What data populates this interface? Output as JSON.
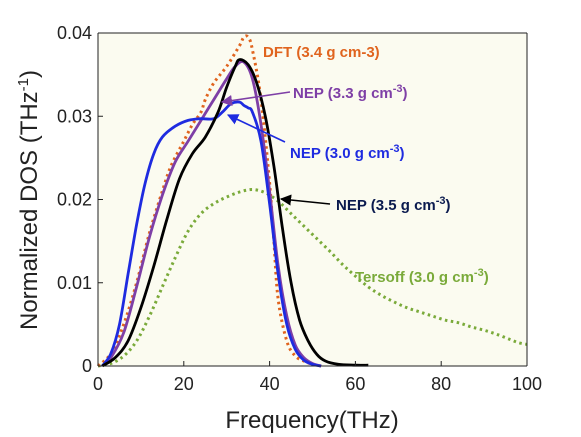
{
  "chart_data": {
    "type": "line",
    "xlabel": "Frequency(THz)",
    "ylabel": "Normalized DOS (THz",
    "ylabel_sup": "-1",
    "ylabel_close": ")",
    "xlim": [
      0,
      100
    ],
    "ylim": [
      0,
      0.04
    ],
    "xticks": [
      "0",
      "20",
      "40",
      "60",
      "80",
      "100"
    ],
    "yticks": [
      "0",
      "0.01",
      "0.02",
      "0.03",
      "0.04"
    ],
    "grid": false,
    "colors": {
      "dft": "#E0641E",
      "nep33": "#7E3FA6",
      "nep30": "#1E2BE0",
      "nep35": "#000000",
      "tersoff": "#7AAA3A",
      "plot_bg": "#FBFBF0"
    },
    "series": [
      {
        "id": "dft",
        "style": "dotted",
        "points": [
          [
            0,
            0
          ],
          [
            3,
            0.0015
          ],
          [
            6,
            0.005
          ],
          [
            9,
            0.01
          ],
          [
            12,
            0.016
          ],
          [
            15,
            0.021
          ],
          [
            17,
            0.024
          ],
          [
            20,
            0.027
          ],
          [
            22,
            0.029
          ],
          [
            24,
            0.0305
          ],
          [
            25,
            0.032
          ],
          [
            27,
            0.034
          ],
          [
            30,
            0.036
          ],
          [
            33,
            0.0385
          ],
          [
            34,
            0.0395
          ],
          [
            35,
            0.0395
          ],
          [
            36,
            0.038
          ],
          [
            38,
            0.032
          ],
          [
            40,
            0.022
          ],
          [
            41,
            0.015
          ],
          [
            42,
            0.008
          ],
          [
            44,
            0.003
          ],
          [
            46,
            0.0012
          ],
          [
            48,
            0.0006
          ],
          [
            50,
            0.0002
          ],
          [
            52,
            0
          ]
        ]
      },
      {
        "id": "nep33",
        "style": "solid",
        "points": [
          [
            1,
            0
          ],
          [
            3,
            0.001
          ],
          [
            6,
            0.004
          ],
          [
            9,
            0.0095
          ],
          [
            12,
            0.0155
          ],
          [
            15,
            0.0205
          ],
          [
            18,
            0.0245
          ],
          [
            21,
            0.027
          ],
          [
            24,
            0.0295
          ],
          [
            27,
            0.032
          ],
          [
            30,
            0.0345
          ],
          [
            32,
            0.036
          ],
          [
            34,
            0.0365
          ],
          [
            36,
            0.0345
          ],
          [
            38,
            0.029
          ],
          [
            40,
            0.021
          ],
          [
            42,
            0.012
          ],
          [
            44,
            0.006
          ],
          [
            46,
            0.0025
          ],
          [
            48,
            0.001
          ],
          [
            50,
            0.0003
          ],
          [
            52,
            0
          ]
        ]
      },
      {
        "id": "nep30",
        "style": "solid",
        "points": [
          [
            1,
            0
          ],
          [
            3,
            0.0015
          ],
          [
            5,
            0.005
          ],
          [
            7,
            0.011
          ],
          [
            9,
            0.017
          ],
          [
            11,
            0.022
          ],
          [
            13,
            0.0255
          ],
          [
            15,
            0.0275
          ],
          [
            18,
            0.0288
          ],
          [
            21,
            0.0295
          ],
          [
            24,
            0.0297
          ],
          [
            27,
            0.0297
          ],
          [
            29,
            0.0305
          ],
          [
            31,
            0.0315
          ],
          [
            33,
            0.0317
          ],
          [
            34,
            0.0313
          ],
          [
            35,
            0.031
          ],
          [
            36,
            0.0305
          ],
          [
            38,
            0.027
          ],
          [
            40,
            0.0195
          ],
          [
            42,
            0.011
          ],
          [
            44,
            0.005
          ],
          [
            46,
            0.002
          ],
          [
            48,
            0.0007
          ],
          [
            50,
            0.0002
          ],
          [
            52,
            0
          ]
        ]
      },
      {
        "id": "nep35",
        "style": "solid",
        "points": [
          [
            1,
            0
          ],
          [
            4,
            0.001
          ],
          [
            7,
            0.003
          ],
          [
            10,
            0.007
          ],
          [
            13,
            0.012
          ],
          [
            16,
            0.0175
          ],
          [
            19,
            0.0225
          ],
          [
            22,
            0.0255
          ],
          [
            25,
            0.0275
          ],
          [
            28,
            0.0305
          ],
          [
            30,
            0.0335
          ],
          [
            32,
            0.036
          ],
          [
            33,
            0.0368
          ],
          [
            35,
            0.0362
          ],
          [
            37,
            0.034
          ],
          [
            39,
            0.03
          ],
          [
            41,
            0.024
          ],
          [
            43,
            0.0165
          ],
          [
            45,
            0.01
          ],
          [
            47,
            0.0055
          ],
          [
            49,
            0.003
          ],
          [
            51,
            0.0014
          ],
          [
            53,
            0.0006
          ],
          [
            56,
            0.0002
          ],
          [
            60,
            0.0001
          ],
          [
            63,
            0.0001
          ]
        ]
      },
      {
        "id": "tersoff",
        "style": "dotted",
        "points": [
          [
            0,
            0
          ],
          [
            3,
            0.0003
          ],
          [
            6,
            0.0012
          ],
          [
            9,
            0.003
          ],
          [
            12,
            0.006
          ],
          [
            15,
            0.0095
          ],
          [
            18,
            0.013
          ],
          [
            21,
            0.0162
          ],
          [
            24,
            0.0183
          ],
          [
            27,
            0.0195
          ],
          [
            30,
            0.0203
          ],
          [
            33,
            0.0209
          ],
          [
            36,
            0.0212
          ],
          [
            39,
            0.0208
          ],
          [
            42,
            0.0198
          ],
          [
            45,
            0.0183
          ],
          [
            48,
            0.0168
          ],
          [
            51,
            0.0153
          ],
          [
            54,
            0.0138
          ],
          [
            57,
            0.0122
          ],
          [
            60,
            0.0108
          ],
          [
            63,
            0.0095
          ],
          [
            66,
            0.0085
          ],
          [
            69,
            0.0077
          ],
          [
            72,
            0.007
          ],
          [
            75,
            0.0065
          ],
          [
            78,
            0.006
          ],
          [
            81,
            0.0055
          ],
          [
            84,
            0.0052
          ],
          [
            87,
            0.0047
          ],
          [
            90,
            0.0043
          ],
          [
            93,
            0.0038
          ],
          [
            96,
            0.0032
          ],
          [
            98,
            0.0028
          ],
          [
            100,
            0.0026
          ]
        ]
      }
    ],
    "annotations": [
      {
        "id": "dft",
        "pre": "DFT (3.4 g cm-3)",
        "sup": "",
        "post": ""
      },
      {
        "id": "nep33",
        "pre": "NEP (3.3 g cm",
        "sup": "-3",
        "post": ")"
      },
      {
        "id": "nep30",
        "pre": "NEP (3.0 g cm",
        "sup": "-3",
        "post": ")"
      },
      {
        "id": "nep35",
        "pre": "NEP (3.5 g cm",
        "sup": "-3",
        "post": ")"
      },
      {
        "id": "tersoff",
        "pre": "Tersoff (3.0 g cm",
        "sup": "-3",
        "post": ")"
      }
    ]
  }
}
